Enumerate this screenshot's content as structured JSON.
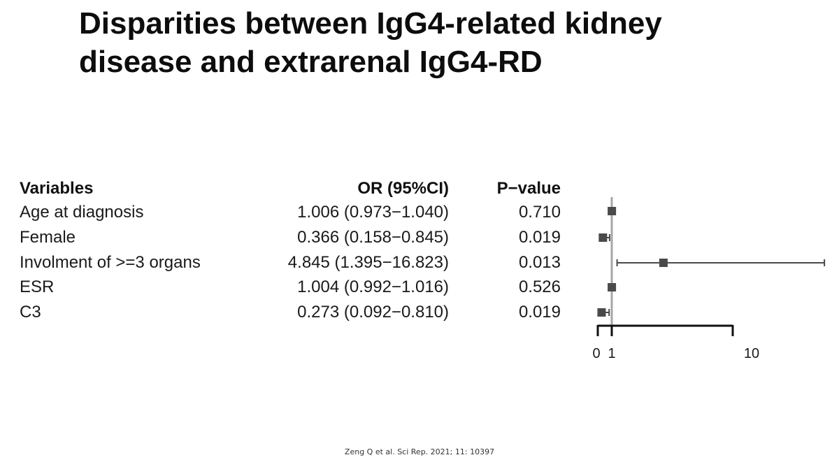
{
  "slide": {
    "title_line1": "Disparities between IgG4-related kidney",
    "title_line2": "disease and extrarenal IgG4-RD",
    "citation": "Zeng Q et al. Sci Rep. 2021; 11: 10397"
  },
  "table": {
    "headers": {
      "variables": "Variables",
      "or": "OR (95%CI)",
      "p": "P−value"
    },
    "rows": [
      {
        "variable": "Age at diagnosis",
        "or_text": "1.006 (0.973−1.040)",
        "p": "0.710"
      },
      {
        "variable": "Female",
        "or_text": "0.366 (0.158−0.845)",
        "p": "0.019"
      },
      {
        "variable": "Involment of >=3 organs",
        "or_text": "4.845 (1.395−16.823)",
        "p": "0.013"
      },
      {
        "variable": "ESR",
        "or_text": "1.004 (0.992−1.016)",
        "p": "0.526"
      },
      {
        "variable": "C3",
        "or_text": "0.273 (0.092−0.810)",
        "p": "0.019"
      }
    ]
  },
  "chart_data": {
    "type": "forest",
    "title": "Disparities between IgG4-related kidney disease and extrarenal IgG4-RD",
    "xlabel": "",
    "ylabel": "",
    "reference_line": 1,
    "axis_ticks": [
      0,
      1,
      10
    ],
    "axis_tick_labels": [
      "0",
      "1",
      "10"
    ],
    "categories": [
      "Age at diagnosis",
      "Female",
      "Involment of >=3 organs",
      "ESR",
      "C3"
    ],
    "estimates": [
      1.006,
      0.366,
      4.845,
      1.004,
      0.273
    ],
    "ci_lower": [
      0.973,
      0.158,
      1.395,
      0.992,
      0.092
    ],
    "ci_upper": [
      1.04,
      0.845,
      16.823,
      1.016,
      0.81
    ],
    "p_values": [
      0.71,
      0.019,
      0.013,
      0.526,
      0.019
    ],
    "colors": {
      "marker": "#4a4a4a",
      "whisker": "#4a4a4a",
      "reference": "#a6a6a6",
      "axis": "#111111"
    }
  }
}
